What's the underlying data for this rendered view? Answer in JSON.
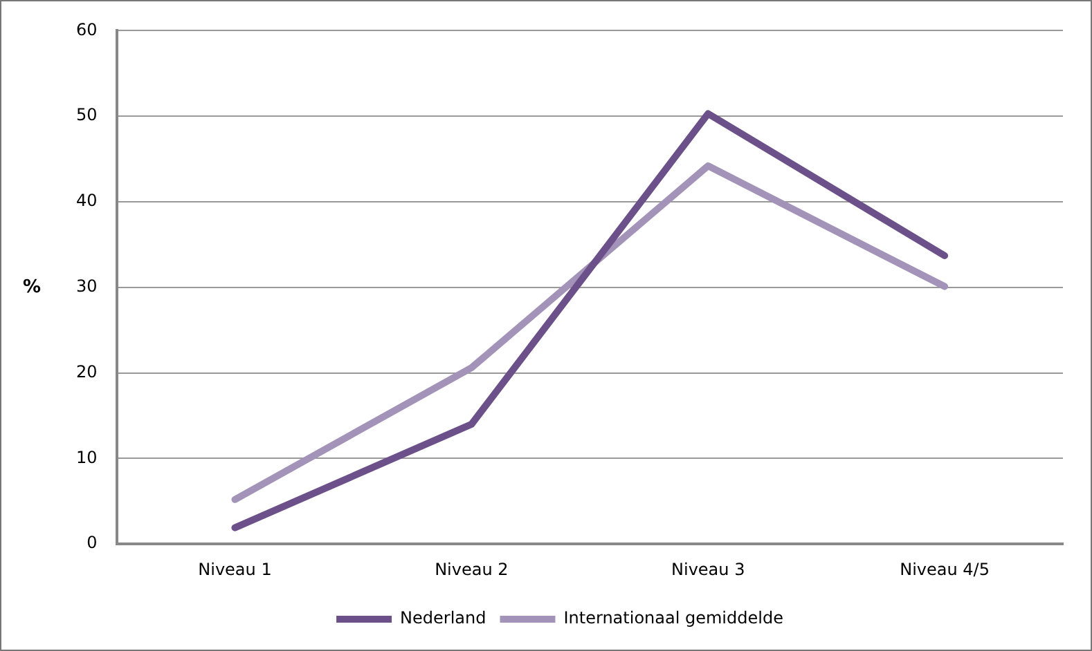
{
  "chart_data": {
    "type": "line",
    "ylabel": "%",
    "categories": [
      "Niveau 1",
      "Niveau 2",
      "Niveau 3",
      "Niveau 4/5"
    ],
    "series": [
      {
        "name": "Nederland",
        "color": "#6b5089",
        "values": [
          1.9,
          14,
          50.3,
          33.7
        ]
      },
      {
        "name": "Internationaal gemiddelde",
        "color": "#a393b8",
        "values": [
          5.2,
          20.6,
          44.2,
          30.1
        ]
      }
    ],
    "ylim": [
      0,
      60
    ],
    "yticks": [
      0,
      10,
      20,
      30,
      40,
      50,
      60
    ],
    "grid": "y",
    "legend": "bottom",
    "marker": "none",
    "line_style": "solid"
  }
}
